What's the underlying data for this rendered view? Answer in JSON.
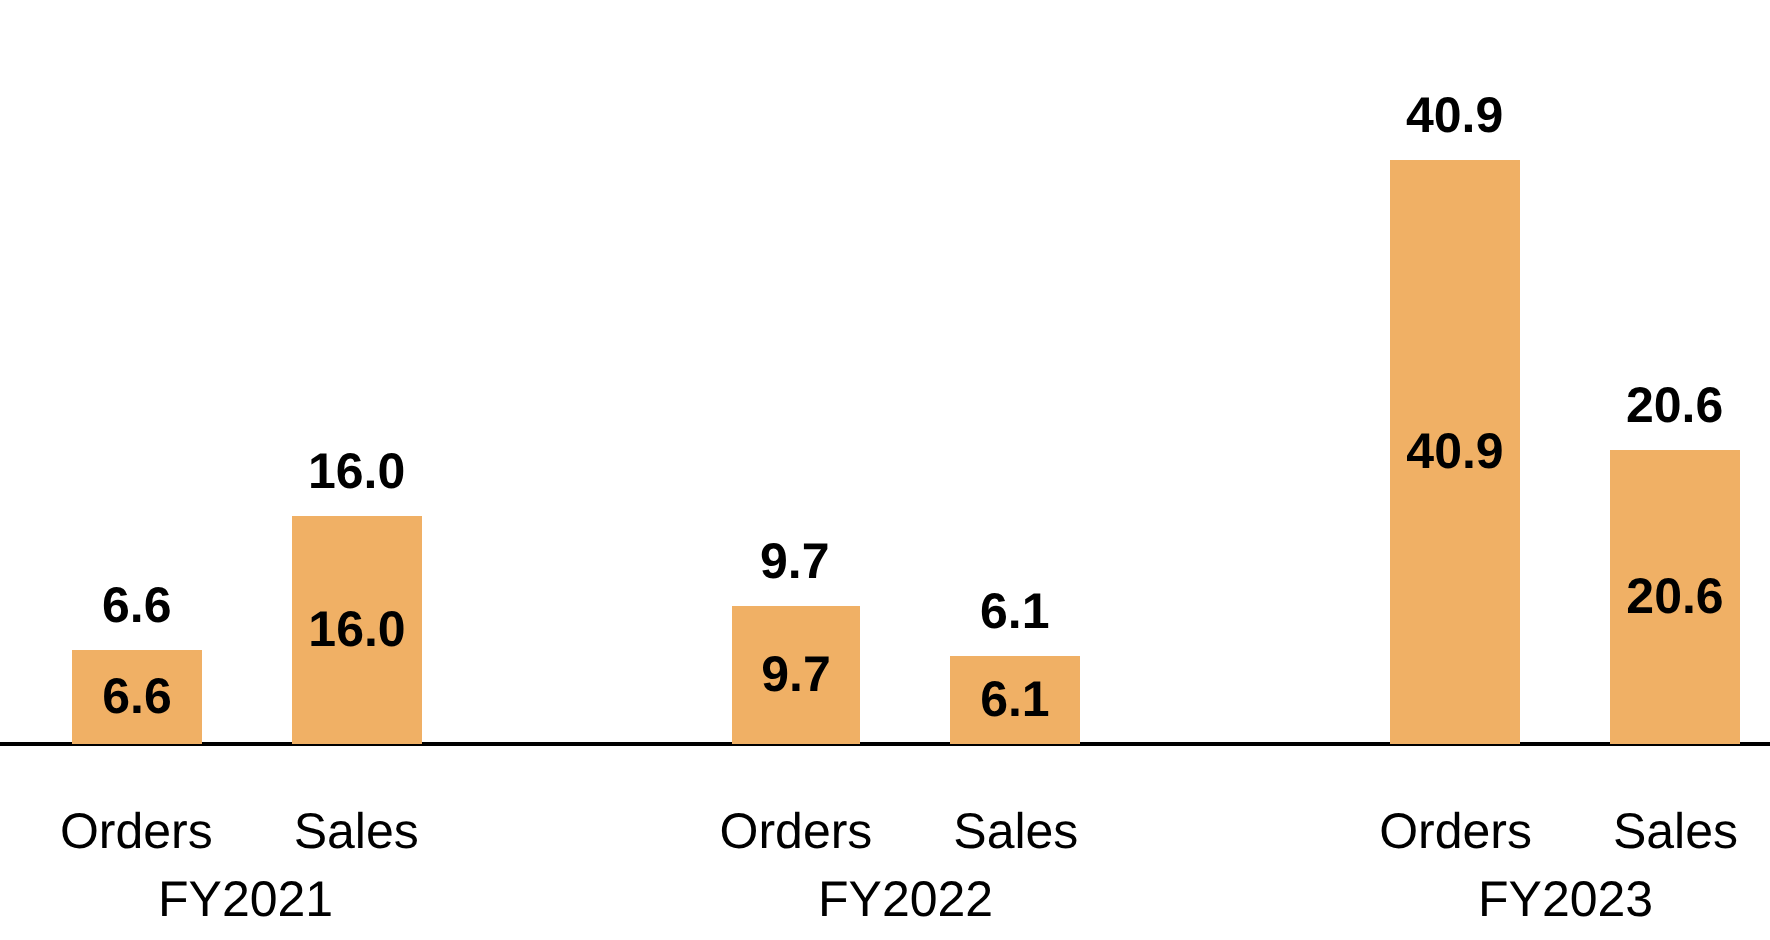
{
  "chart_data": {
    "type": "bar",
    "categories": [
      "Orders",
      "Sales",
      "Orders",
      "Sales",
      "Orders",
      "Sales"
    ],
    "values": [
      6.6,
      16.0,
      9.7,
      6.1,
      40.9,
      20.6
    ],
    "color": "#f0b065",
    "value_labels": [
      "6.6",
      "16.0",
      "9.7",
      "6.1",
      "40.9",
      "20.6"
    ],
    "annotations": [
      "FY2021",
      "FY2022",
      "FY2023"
    ]
  }
}
